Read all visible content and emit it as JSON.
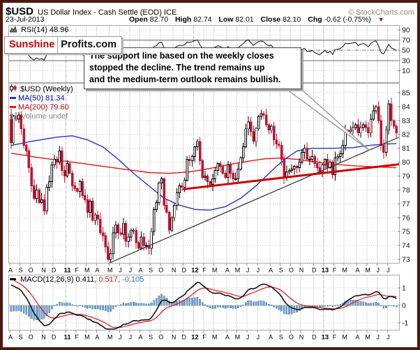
{
  "header": {
    "symbol": "$USD",
    "title": "US Dollar Index - Cash Settle (EOD) ICE",
    "copyright": "© StockCharts.com",
    "date": "23-Jul-2013",
    "quote": {
      "open_label": "Open",
      "open": "82.70",
      "high_label": "High",
      "high": "82.74",
      "low_label": "Low",
      "low": "82.01",
      "close_label": "Close",
      "close": "82.10",
      "chg_label": "Chg",
      "chg": "-0.62 (-0.75%)",
      "arrow": "▼"
    }
  },
  "watermark": {
    "part1": "Sunshine",
    "part2": "Profits.com"
  },
  "annotation": {
    "lines": [
      "The support line based on the weekly closes",
      "stopped the decline. The trend remains up",
      "and the medium-term outlook remains bullish."
    ]
  },
  "panels": {
    "rsi": {
      "label": "RSI(14) 48.96"
    },
    "price": {
      "symbol_label": "$USD (Weekly)",
      "ma50_label": "MA(50) 81.34",
      "ma200_label": "MA(200) 79.60",
      "volume_label": "Volume undef"
    },
    "macd": {
      "label": "MACD(12,26,9) 0.411,",
      "signal_text": "0.517,",
      "hist_text": "-0.105"
    }
  },
  "chart_data": {
    "type": "candlestick",
    "timeframe": "weekly",
    "title": "$USD US Dollar Index - Cash Settle (EOD) ICE",
    "x_axis_labels": [
      "A",
      "S",
      "O",
      "N",
      "D",
      "11",
      "F",
      "M",
      "A",
      "M",
      "J",
      "J",
      "A",
      "S",
      "O",
      "N",
      "D",
      "12",
      "F",
      "M",
      "A",
      "M",
      "J",
      "J",
      "A",
      "S",
      "O",
      "N",
      "D",
      "13",
      "F",
      "M",
      "A",
      "M",
      "J",
      "J"
    ],
    "bold_label_idx": [
      5,
      17,
      29
    ],
    "weeks_per_month": [
      4,
      4,
      5,
      4,
      5,
      4,
      4,
      4,
      5,
      4,
      4,
      4,
      4,
      4,
      5,
      4,
      4,
      4,
      4,
      5,
      4,
      4,
      4,
      5,
      4,
      4,
      4,
      5,
      4,
      4,
      4,
      5,
      4,
      4,
      4,
      4
    ],
    "year_line_weeks": [
      22,
      72,
      123
    ],
    "first_open": 83.4,
    "pre_history": [
      76.5,
      77.0,
      77.5,
      78.0,
      78.5,
      79.0,
      79.5,
      80.0,
      80.5,
      81.0,
      81.5,
      82.0,
      82.5,
      83.0,
      83.3,
      83.6,
      83.8,
      84.0,
      84.1,
      84.2,
      84.3,
      84.2,
      84.0,
      83.8,
      83.6,
      83.4
    ],
    "close": [
      81.4,
      83.3,
      83.1,
      83.4,
      82.4,
      81.2,
      80.8,
      79.6,
      78.3,
      77.4,
      78.0,
      77.1,
      77.3,
      76.5,
      78.2,
      78.6,
      79.8,
      80.2,
      80.0,
      80.8,
      79.4,
      79.0,
      79.9,
      79.2,
      78.3,
      78.1,
      77.9,
      78.6,
      77.6,
      77.3,
      76.4,
      77.2,
      75.8,
      76.2,
      75.9,
      74.9,
      74.7,
      73.9,
      73.0,
      73.4,
      74.9,
      75.5,
      74.9,
      74.8,
      75.6,
      74.3,
      74.6,
      75.1,
      75.1,
      74.2,
      73.8,
      74.6,
      74.0,
      74.0,
      73.8,
      75.0,
      76.6,
      77.1,
      78.5,
      78.8,
      76.9,
      76.4,
      75.1,
      76.0,
      76.9,
      77.8,
      78.3,
      78.2,
      78.7,
      80.2,
      80.1,
      80.4,
      81.1,
      81.5,
      80.1,
      78.9,
      79.0,
      78.6,
      78.4,
      78.8,
      79.4,
      79.9,
      79.7,
      79.2,
      78.9,
      79.8,
      79.2,
      78.8,
      78.8,
      79.5,
      80.3,
      81.1,
      82.4,
      82.9,
      82.2,
      81.5,
      82.4,
      83.3,
      83.5,
      83.4,
      82.7,
      82.3,
      82.6,
      81.6,
      81.3,
      81.2,
      80.2,
      78.9,
      79.3,
      79.4,
      79.5,
      79.7,
      79.6,
      80.0,
      80.7,
      81.0,
      80.2,
      80.2,
      80.4,
      79.9,
      79.6,
      79.3,
      79.8,
      80.2,
      79.6,
      80.0,
      79.1,
      80.3,
      80.4,
      80.6,
      81.2,
      82.3,
      82.2,
      82.3,
      82.5,
      82.7,
      82.1,
      82.5,
      82.7,
      82.5,
      82.1,
      83.1,
      83.7,
      84.0,
      83.0,
      81.2,
      80.7,
      82.3,
      84.2,
      83.0,
      82.6,
      82.1
    ],
    "series": [
      {
        "name": "MA(50)",
        "color": "#2233cc",
        "last": 81.34,
        "anchors": [
          [
            0,
            81.2
          ],
          [
            8,
            81.5
          ],
          [
            18,
            81.8
          ],
          [
            24,
            81.9
          ],
          [
            30,
            81.6
          ],
          [
            36,
            81.1
          ],
          [
            42,
            80.2
          ],
          [
            48,
            79.2
          ],
          [
            54,
            78.3
          ],
          [
            60,
            77.4
          ],
          [
            66,
            76.9
          ],
          [
            72,
            76.6
          ],
          [
            78,
            76.55
          ],
          [
            84,
            76.8
          ],
          [
            90,
            77.4
          ],
          [
            96,
            78.3
          ],
          [
            100,
            79.0
          ],
          [
            104,
            79.7
          ],
          [
            108,
            80.3
          ],
          [
            112,
            80.8
          ],
          [
            118,
            81.0
          ],
          [
            126,
            81.0
          ],
          [
            134,
            81.05
          ],
          [
            140,
            81.2
          ],
          [
            146,
            81.3
          ],
          [
            151,
            81.34
          ]
        ]
      },
      {
        "name": "MA(200)",
        "color": "#ee1111",
        "last": 79.6,
        "anchors": [
          [
            0,
            80.65
          ],
          [
            10,
            80.35
          ],
          [
            20,
            80.1
          ],
          [
            30,
            79.85
          ],
          [
            40,
            79.6
          ],
          [
            48,
            79.4
          ],
          [
            54,
            79.25
          ],
          [
            62,
            79.2
          ],
          [
            70,
            79.3
          ],
          [
            78,
            79.55
          ],
          [
            86,
            79.85
          ],
          [
            94,
            80.1
          ],
          [
            100,
            80.25
          ],
          [
            106,
            80.3
          ],
          [
            112,
            80.2
          ],
          [
            118,
            80.05
          ],
          [
            124,
            79.9
          ],
          [
            130,
            79.8
          ],
          [
            136,
            79.72
          ],
          [
            142,
            79.67
          ],
          [
            151,
            79.6
          ]
        ]
      }
    ],
    "trendlines": [
      {
        "name": "rising-trendline",
        "color": "#2b2b2b",
        "width": 1.2,
        "pts": [
          [
            38.5,
            72.7
          ],
          [
            159,
            81.8
          ]
        ]
      },
      {
        "name": "weekly-close-support-line",
        "color": "#cc0000",
        "width": 3,
        "pts": [
          [
            67.8,
            78.05
          ],
          [
            159,
            79.85
          ]
        ]
      }
    ],
    "price_axis": {
      "min": 73,
      "max": 85,
      "ticks": [
        85,
        84,
        83,
        82,
        81,
        80,
        79,
        78,
        77,
        76,
        75,
        74,
        73
      ]
    },
    "rsi": {
      "period": 14,
      "last": 48.96,
      "axis_ticks": [
        90,
        70,
        50,
        30,
        10
      ],
      "overbought": 70,
      "oversold": 30,
      "mid": 50
    },
    "macd": {
      "fast": 12,
      "slow": 26,
      "signal_period": 9,
      "last_macd": 0.411,
      "last_signal": 0.517,
      "last_hist": -0.105,
      "axis_ticks": [
        1,
        0,
        -1
      ]
    },
    "colors": {
      "candle_up_fill": "#ffffff",
      "candle_up_stroke": "#000000",
      "candle_down": "#c41230",
      "hist_fill": "#7ba7cf",
      "hist_stroke": "#4d7fb0"
    }
  }
}
